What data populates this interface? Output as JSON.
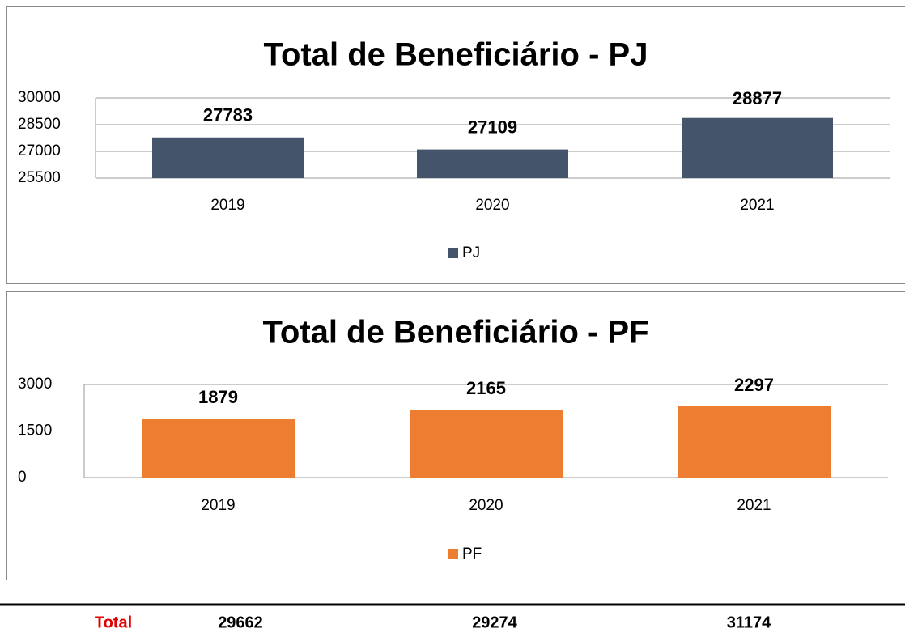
{
  "chart_data": [
    {
      "type": "bar",
      "title": "Total de Beneficiário - PJ",
      "categories": [
        "2019",
        "2020",
        "2021"
      ],
      "series": [
        {
          "name": "PJ",
          "color": "#44546a",
          "values": [
            27783,
            27109,
            28877
          ]
        }
      ],
      "ylim": [
        25500,
        30000
      ],
      "yticks": [
        25500,
        27000,
        28500,
        30000
      ],
      "grid": true,
      "legend": "bottom"
    },
    {
      "type": "bar",
      "title": "Total de Beneficiário - PF",
      "categories": [
        "2019",
        "2020",
        "2021"
      ],
      "series": [
        {
          "name": "PF",
          "color": "#ed7d31",
          "values": [
            1879,
            2165,
            2297
          ]
        }
      ],
      "ylim": [
        0,
        3000
      ],
      "yticks": [
        0,
        1500,
        3000
      ],
      "grid": true,
      "legend": "bottom"
    }
  ],
  "table": {
    "label": "Total",
    "values": [
      29662,
      29274,
      31174
    ]
  }
}
